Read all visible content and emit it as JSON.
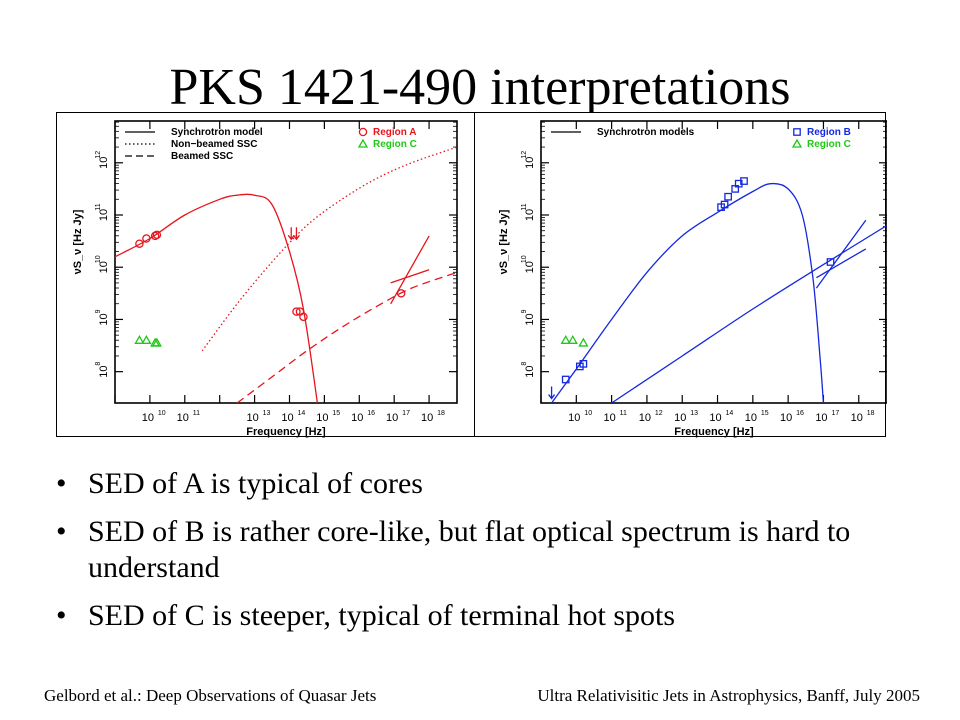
{
  "title": "PKS 1421-490 interpretations",
  "bullets": [
    "SED of A is typical of cores",
    "SED of B is rather core-like, but flat optical spectrum is hard to understand",
    "SED of C is steeper, typical of terminal hot spots"
  ],
  "bullet_symbol": "•",
  "footer": {
    "left": "Gelbord et al.: Deep Observations of Quasar Jets",
    "right": "Ultra Relativisitic Jets in Astrophysics, Banff, July 2005"
  },
  "colors": {
    "region_a": "#e8141c",
    "region_b": "#1428e0",
    "region_c": "#1ec814",
    "axes": "#000000"
  },
  "chart_data": [
    {
      "type": "scatter",
      "xlabel": "Frequency [Hz]",
      "ylabel": "νS_ν [Hz Jy]",
      "x_log": true,
      "y_log": true,
      "xlim_log10": [
        9.0,
        18.8
      ],
      "ylim_log10": [
        7.4,
        12.8
      ],
      "x_ticks": [
        "10",
        "11",
        "13",
        "14",
        "15",
        "16",
        "17",
        "18"
      ],
      "y_ticks": [
        "8",
        "9",
        "10",
        "11",
        "12"
      ],
      "legend_left": [
        {
          "style": "solid",
          "label": "Synchrotron model"
        },
        {
          "style": "dotted",
          "label": "Non−beamed SSC"
        },
        {
          "style": "dashed",
          "label": "Beamed SSC"
        }
      ],
      "legend_right": [
        {
          "marker": "circle",
          "label": "Region A",
          "color": "#e8141c"
        },
        {
          "marker": "triangle",
          "label": "Region C",
          "color": "#1ec814"
        }
      ],
      "series": [
        {
          "name": "Region A",
          "marker": "circle",
          "color": "#e8141c",
          "points": [
            [
              9.7,
              10.45
            ],
            [
              9.9,
              10.55
            ],
            [
              10.15,
              10.6
            ],
            [
              10.2,
              10.62
            ],
            [
              14.2,
              9.15
            ],
            [
              14.3,
              9.15
            ],
            [
              14.4,
              9.05
            ],
            [
              17.2,
              9.5
            ]
          ]
        },
        {
          "name": "Region A upper limit",
          "marker": "arrow-down",
          "color": "#e8141c",
          "points": [
            [
              14.05,
              10.65
            ],
            [
              14.2,
              10.65
            ]
          ]
        },
        {
          "name": "Region C",
          "marker": "triangle",
          "color": "#1ec814",
          "points": [
            [
              9.7,
              8.6
            ],
            [
              9.9,
              8.6
            ],
            [
              10.15,
              8.55
            ],
            [
              10.2,
              8.55
            ]
          ]
        }
      ],
      "models": [
        {
          "style": "solid",
          "color": "#e8141c",
          "points": [
            [
              9.0,
              10.2
            ],
            [
              10.0,
              10.55
            ],
            [
              11.0,
              11.0
            ],
            [
              12.0,
              11.3
            ],
            [
              12.5,
              11.38
            ],
            [
              13.0,
              11.38
            ],
            [
              13.5,
              11.2
            ],
            [
              14.0,
              10.3
            ],
            [
              14.4,
              9.2
            ],
            [
              14.8,
              7.4
            ]
          ]
        },
        {
          "style": "dotted",
          "color": "#e8141c",
          "points": [
            [
              11.5,
              8.4
            ],
            [
              12.5,
              9.3
            ],
            [
              13.5,
              10.1
            ],
            [
              14.5,
              10.8
            ],
            [
              15.5,
              11.3
            ],
            [
              16.5,
              11.7
            ],
            [
              17.5,
              12.0
            ],
            [
              18.8,
              12.3
            ]
          ]
        },
        {
          "style": "dashed",
          "color": "#e8141c",
          "points": [
            [
              12.5,
              7.4
            ],
            [
              13.5,
              7.9
            ],
            [
              14.5,
              8.4
            ],
            [
              15.5,
              8.85
            ],
            [
              16.5,
              9.25
            ],
            [
              17.5,
              9.6
            ],
            [
              18.8,
              9.9
            ]
          ]
        },
        {
          "style": "solid",
          "color": "#e8141c",
          "label": "X-ray bowtie",
          "points": [
            [
              16.9,
              9.3
            ],
            [
              18.0,
              10.6
            ]
          ]
        },
        {
          "style": "solid",
          "color": "#e8141c",
          "label": "X-ray bowtie",
          "points": [
            [
              16.9,
              9.7
            ],
            [
              18.0,
              9.95
            ]
          ]
        }
      ]
    },
    {
      "type": "scatter",
      "xlabel": "Frequency [Hz]",
      "ylabel": "νS_ν [Hz Jy]",
      "x_log": true,
      "y_log": true,
      "xlim_log10": [
        9.0,
        18.8
      ],
      "ylim_log10": [
        7.4,
        12.8
      ],
      "x_ticks": [
        "10",
        "11",
        "12",
        "13",
        "14",
        "15",
        "16",
        "17",
        "18"
      ],
      "y_ticks": [
        "8",
        "9",
        "10",
        "11",
        "12"
      ],
      "legend_left": [
        {
          "style": "solid",
          "label": "Synchrotron models"
        }
      ],
      "legend_right": [
        {
          "marker": "square",
          "label": "Region B",
          "color": "#1428e0"
        },
        {
          "marker": "triangle",
          "label": "Region C",
          "color": "#1ec814"
        }
      ],
      "series": [
        {
          "name": "Region B",
          "marker": "square",
          "color": "#1428e0",
          "points": [
            [
              9.7,
              7.85
            ],
            [
              10.1,
              8.1
            ],
            [
              10.2,
              8.15
            ],
            [
              14.1,
              11.15
            ],
            [
              14.2,
              11.2
            ],
            [
              14.3,
              11.35
            ],
            [
              14.5,
              11.5
            ],
            [
              14.6,
              11.6
            ],
            [
              14.75,
              11.65
            ],
            [
              17.2,
              10.1
            ]
          ]
        },
        {
          "name": "Region C",
          "marker": "triangle",
          "color": "#1ec814",
          "points": [
            [
              9.7,
              8.6
            ],
            [
              9.9,
              8.6
            ],
            [
              10.2,
              8.55
            ]
          ]
        }
      ],
      "models": [
        {
          "style": "solid",
          "color": "#1428e0",
          "points": [
            [
              9.3,
              7.4
            ],
            [
              10.0,
              8.05
            ],
            [
              11.0,
              9.0
            ],
            [
              12.0,
              9.9
            ],
            [
              13.0,
              10.6
            ],
            [
              14.0,
              11.05
            ],
            [
              15.0,
              11.45
            ],
            [
              15.5,
              11.6
            ],
            [
              16.0,
              11.5
            ],
            [
              16.4,
              11.0
            ],
            [
              16.7,
              9.8
            ],
            [
              16.9,
              8.3
            ],
            [
              17.0,
              7.4
            ]
          ]
        },
        {
          "style": "solid",
          "color": "#1428e0",
          "points": [
            [
              11.0,
              7.4
            ],
            [
              13.0,
              8.3
            ],
            [
              15.0,
              9.2
            ],
            [
              17.0,
              10.05
            ],
            [
              18.8,
              10.8
            ]
          ]
        },
        {
          "style": "solid",
          "color": "#1428e0",
          "label": "X-ray bowtie",
          "points": [
            [
              16.8,
              9.8
            ],
            [
              18.2,
              10.35
            ]
          ]
        },
        {
          "style": "solid",
          "color": "#1428e0",
          "label": "X-ray bowtie",
          "points": [
            [
              16.8,
              9.6
            ],
            [
              18.2,
              10.9
            ]
          ]
        }
      ],
      "upper_limit_arrow": {
        "x": 9.3,
        "y": 7.6,
        "color": "#1428e0"
      }
    }
  ]
}
